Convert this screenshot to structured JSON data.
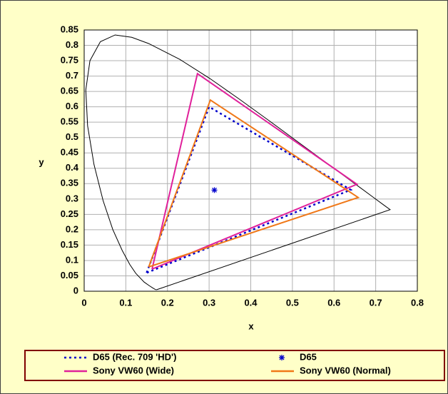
{
  "chart_data": {
    "type": "line",
    "x_label": "x",
    "y_label": "y",
    "xlim": [
      0,
      0.8
    ],
    "ylim": [
      0,
      0.85
    ],
    "xticks": [
      0,
      0.1,
      0.2,
      0.3,
      0.4,
      0.5,
      0.6,
      0.7,
      0.8
    ],
    "yticks": [
      0,
      0.05,
      0.1,
      0.15,
      0.2,
      0.25,
      0.3,
      0.35,
      0.4,
      0.45,
      0.5,
      0.55,
      0.6,
      0.65,
      0.7,
      0.75,
      0.8,
      0.85
    ],
    "grid": true,
    "series": [
      {
        "color": "#000000",
        "style": "solid",
        "x": [
          0.1741,
          0.1714,
          0.1644,
          0.1566,
          0.144,
          0.1241,
          0.1096,
          0.0913,
          0.0687,
          0.0454,
          0.0235,
          0.0082,
          0.0039,
          0.0139,
          0.0389,
          0.0743,
          0.1142,
          0.1547,
          0.2296,
          0.3016,
          0.3731,
          0.4441,
          0.5125,
          0.5752,
          0.627,
          0.6658,
          0.6915,
          0.719,
          0.7347,
          0.1741
        ],
        "values": [
          0.005,
          0.0051,
          0.0109,
          0.0177,
          0.0297,
          0.0578,
          0.0868,
          0.1327,
          0.2007,
          0.295,
          0.4127,
          0.5384,
          0.6548,
          0.7502,
          0.812,
          0.8338,
          0.8262,
          0.8059,
          0.7543,
          0.6923,
          0.6245,
          0.5547,
          0.4866,
          0.4242,
          0.3725,
          0.334,
          0.3083,
          0.2809,
          0.2653,
          0.005
        ]
      },
      {
        "name": "D65 (Rec. 709 'HD')",
        "color": "#0000cc",
        "style": "dashed",
        "x": [
          0.15,
          0.3,
          0.64,
          0.15
        ],
        "values": [
          0.06,
          0.6,
          0.33,
          0.06
        ]
      },
      {
        "name": "D65",
        "color": "#0000cc",
        "style": "marker",
        "x": [
          0.3127
        ],
        "values": [
          0.329
        ]
      },
      {
        "name": "Sony VW60 (Wide)",
        "color": "#e0209a",
        "style": "solid",
        "x": [
          0.163,
          0.272,
          0.655,
          0.163
        ],
        "values": [
          0.072,
          0.708,
          0.348,
          0.072
        ]
      },
      {
        "name": "Sony VW60 (Normal)",
        "color": "#f07818",
        "style": "solid",
        "x": [
          0.155,
          0.303,
          0.658,
          0.155
        ],
        "values": [
          0.079,
          0.622,
          0.305,
          0.079
        ]
      }
    ]
  }
}
